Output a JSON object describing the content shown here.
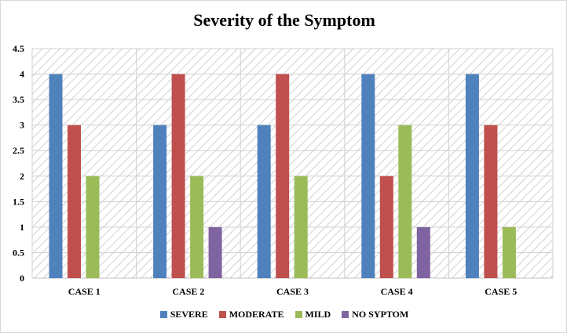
{
  "chart_data": {
    "type": "bar",
    "title": "Severity of the Symptom",
    "categories": [
      "CASE 1",
      "CASE 2",
      "CASE 3",
      "CASE 4",
      "CASE 5"
    ],
    "series": [
      {
        "name": "SEVERE",
        "values": [
          4,
          3,
          3,
          4,
          4
        ],
        "color": "#4f81bd"
      },
      {
        "name": "MODERATE",
        "values": [
          3,
          4,
          4,
          2,
          3
        ],
        "color": "#c0504d"
      },
      {
        "name": "MILD",
        "values": [
          2,
          2,
          2,
          3,
          1
        ],
        "color": "#9bbb59"
      },
      {
        "name": "NO SYPTOM",
        "values": [
          0,
          1,
          0,
          1,
          0
        ],
        "color": "#8064a2"
      }
    ],
    "ylim": [
      0,
      4.5
    ],
    "yticks": [
      "0",
      "0.5",
      "1",
      "1.5",
      "2",
      "2.5",
      "3",
      "3.5",
      "4",
      "4.5"
    ],
    "xlabel": "",
    "ylabel": "",
    "grid": true,
    "legend": "bottom"
  }
}
